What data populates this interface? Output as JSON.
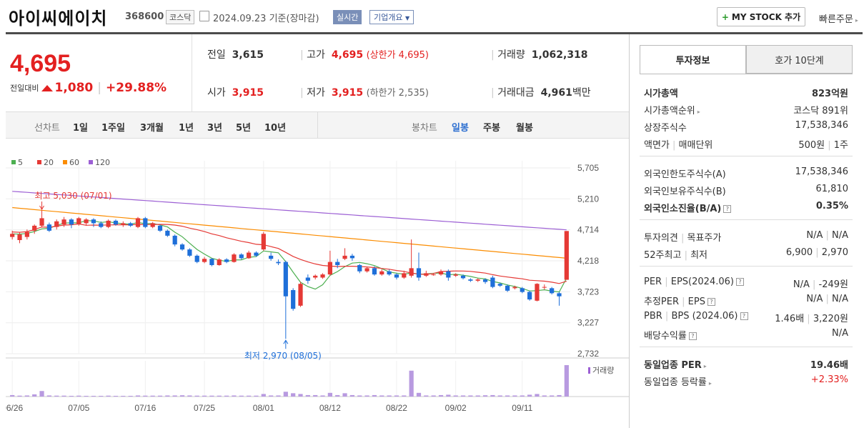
{
  "header": {
    "title": "아이씨에이치",
    "code": "368600",
    "market": "코스닥",
    "date": "2024.09.23",
    "date_suffix": "기준(장마감)",
    "realtime": "실시간",
    "corp_info": "기업개요",
    "mystock": "MY STOCK 추가",
    "fast_order": "빠른주문"
  },
  "price": {
    "current": "4,695",
    "change_label": "전일대비",
    "change": "1,080",
    "change_pct": "+29.88%"
  },
  "stats": {
    "prev_label": "전일",
    "prev": "3,615",
    "high_label": "고가",
    "high": "4,695",
    "high_note": "(상한가 4,695)",
    "volume_label": "거래량",
    "volume": "1,062,318",
    "open_label": "시가",
    "open": "3,915",
    "low_label": "저가",
    "low": "3,915",
    "low_note": "(하한가 2,535)",
    "amount_label": "거래대금",
    "amount": "4,961",
    "amount_unit": "백만"
  },
  "periods": {
    "line_label": "선차트",
    "line_items": [
      "1일",
      "1주일",
      "3개월",
      "1년",
      "3년",
      "5년",
      "10년"
    ],
    "candle_label": "봉차트",
    "candle_items": [
      "일봉",
      "주봉",
      "월봉"
    ]
  },
  "chart_data": {
    "type": "candlestick",
    "legend": [
      "5",
      "20",
      "60",
      "120"
    ],
    "legend_colors": [
      "#4caf50",
      "#e53935",
      "#fb8c00",
      "#9c5fd4"
    ],
    "y_ticks": [
      "5,705",
      "5,210",
      "4,714",
      "4,218",
      "3,723",
      "3,227",
      "2,732"
    ],
    "y_min": 2732,
    "y_max": 5705,
    "x_ticks": [
      "06/26",
      "07/05",
      "07/16",
      "07/25",
      "08/01",
      "08/12",
      "08/22",
      "09/02",
      "09/11"
    ],
    "high_annotation": "최고 5,030 (07/01)",
    "low_annotation": "최저 2,970 (08/05)",
    "volume_label": "거래량",
    "candles": [
      [
        4600,
        4650,
        4700,
        4560
      ],
      [
        4550,
        4640,
        4680,
        4500
      ],
      [
        4600,
        4680,
        4720,
        4560
      ],
      [
        4700,
        4780,
        4800,
        4650
      ],
      [
        4780,
        4900,
        5030,
        4750
      ],
      [
        4800,
        4700,
        4830,
        4680
      ],
      [
        4760,
        4850,
        4880,
        4720
      ],
      [
        4800,
        4880,
        4920,
        4760
      ],
      [
        4880,
        4800,
        4900,
        4740
      ],
      [
        4800,
        4900,
        4920,
        4780
      ],
      [
        4820,
        4880,
        4900,
        4780
      ],
      [
        4880,
        4820,
        4900,
        4760
      ],
      [
        4820,
        4760,
        4850,
        4740
      ],
      [
        4760,
        4860,
        4880,
        4740
      ],
      [
        4860,
        4800,
        4880,
        4780
      ],
      [
        4800,
        4820,
        4850,
        4760
      ],
      [
        4820,
        4780,
        4840,
        4760
      ],
      [
        4760,
        4900,
        4920,
        4740
      ],
      [
        4900,
        4760,
        4920,
        4740
      ],
      [
        4760,
        4820,
        4840,
        4740
      ],
      [
        4780,
        4700,
        4800,
        4680
      ],
      [
        4700,
        4620,
        4720,
        4600
      ],
      [
        4620,
        4480,
        4640,
        4450
      ],
      [
        4480,
        4400,
        4500,
        4380
      ],
      [
        4400,
        4300,
        4420,
        4280
      ],
      [
        4300,
        4200,
        4320,
        4180
      ],
      [
        4200,
        4250,
        4280,
        4180
      ],
      [
        4250,
        4150,
        4260,
        4130
      ],
      [
        4150,
        4240,
        4260,
        4140
      ],
      [
        4240,
        4200,
        4260,
        4180
      ],
      [
        4200,
        4320,
        4340,
        4190
      ],
      [
        4320,
        4260,
        4340,
        4240
      ],
      [
        4260,
        4350,
        4380,
        4250
      ],
      [
        4350,
        4300,
        4370,
        4280
      ],
      [
        4400,
        4650,
        4680,
        4380
      ],
      [
        4300,
        4250,
        4350,
        4220
      ],
      [
        4200,
        4180,
        4240,
        4150
      ],
      [
        4200,
        3650,
        4220,
        2970
      ],
      [
        3750,
        3450,
        3780,
        3420
      ],
      [
        3500,
        3850,
        3880,
        3480
      ],
      [
        3950,
        3900,
        4000,
        3850
      ],
      [
        3950,
        3980,
        4000,
        3920
      ],
      [
        3950,
        4000,
        4020,
        3930
      ],
      [
        4000,
        4200,
        4380,
        3980
      ],
      [
        4200,
        4150,
        4250,
        4100
      ],
      [
        4250,
        4300,
        4420,
        4230
      ],
      [
        4300,
        4260,
        4330,
        4220
      ],
      [
        4150,
        4050,
        4170,
        4020
      ],
      [
        4050,
        4100,
        4120,
        4030
      ],
      [
        4100,
        4000,
        4130,
        3980
      ],
      [
        4000,
        4050,
        4080,
        3980
      ],
      [
        4050,
        4000,
        4080,
        3980
      ],
      [
        4000,
        3950,
        4020,
        3920
      ],
      [
        3950,
        4020,
        4060,
        3930
      ],
      [
        3980,
        4100,
        4560,
        3950
      ],
      [
        4100,
        3950,
        4350,
        3900
      ],
      [
        3980,
        4020,
        4060,
        3960
      ],
      [
        4000,
        4000,
        4020,
        3980
      ],
      [
        4000,
        4050,
        4080,
        3980
      ],
      [
        4050,
        3950,
        4080,
        3900
      ],
      [
        3980,
        4000,
        4020,
        3960
      ],
      [
        3980,
        3940,
        4000,
        3920
      ],
      [
        3920,
        3900,
        3940,
        3880
      ],
      [
        3900,
        3920,
        3940,
        3880
      ],
      [
        3920,
        3880,
        3940,
        3850
      ],
      [
        3950,
        3800,
        3980,
        3780
      ],
      [
        3850,
        3820,
        3870,
        3800
      ],
      [
        3820,
        3740,
        3840,
        3720
      ],
      [
        3780,
        3800,
        3820,
        3760
      ],
      [
        3780,
        3720,
        3800,
        3700
      ],
      [
        3720,
        3600,
        3740,
        3580
      ],
      [
        3580,
        3850,
        3860,
        3570
      ],
      [
        3800,
        3800,
        3840,
        3760
      ],
      [
        3780,
        3700,
        3800,
        3680
      ],
      [
        3700,
        3650,
        3720,
        3500
      ],
      [
        3915,
        4695,
        4695,
        3915
      ]
    ],
    "volumes": [
      8,
      5,
      6,
      12,
      30,
      6,
      5,
      5,
      4,
      5,
      4,
      4,
      4,
      5,
      4,
      4,
      4,
      6,
      5,
      5,
      5,
      6,
      6,
      7,
      6,
      5,
      5,
      5,
      5,
      5,
      6,
      5,
      5,
      5,
      14,
      6,
      6,
      26,
      18,
      14,
      8,
      8,
      6,
      20,
      8,
      18,
      8,
      6,
      6,
      8,
      6,
      6,
      6,
      6,
      140,
      20,
      6,
      6,
      8,
      10,
      6,
      6,
      6,
      6,
      7,
      8,
      6,
      6,
      6,
      6,
      10,
      14,
      6,
      6,
      8,
      170
    ]
  },
  "info": {
    "tab1": "투자정보",
    "tab2": "호가 10단계",
    "market_cap_label": "시가총액",
    "market_cap": "823억원",
    "rank_label": "시가총액순위",
    "rank": "코스닥 891위",
    "shares_label": "상장주식수",
    "shares": "17,538,346",
    "face_label": "액면가",
    "trade_unit_label": "매매단위",
    "face": "500원",
    "trade_unit": "1주",
    "foreign_limit_label": "외국인한도주식수(A)",
    "foreign_limit": "17,538,346",
    "foreign_hold_label": "외국인보유주식수(B)",
    "foreign_hold": "61,810",
    "foreign_ratio_label": "외국인소진율(B/A)",
    "foreign_ratio": "0.35%",
    "opinion_label": "투자의견",
    "target_label": "목표주가",
    "opinion": "N/A",
    "target": "N/A",
    "w52_label": "52주최고",
    "w52_low_label": "최저",
    "w52_high": "6,900",
    "w52_low": "2,970",
    "per_label": "PER",
    "eps_label": "EPS(2024.06)",
    "per": "N/A",
    "eps": "-249원",
    "est_per_label": "추정PER",
    "est_eps_label": "EPS",
    "est_per": "N/A",
    "est_eps": "N/A",
    "pbr_label": "PBR",
    "bps_label": "BPS (2024.06)",
    "pbr": "1.46배",
    "bps": "3,220원",
    "div_label": "배당수익률",
    "div": "N/A",
    "ind_per_label": "동일업종 PER",
    "ind_per": "19.46배",
    "ind_chg_label": "동일업종 등락률",
    "ind_chg": "+2.33%"
  }
}
